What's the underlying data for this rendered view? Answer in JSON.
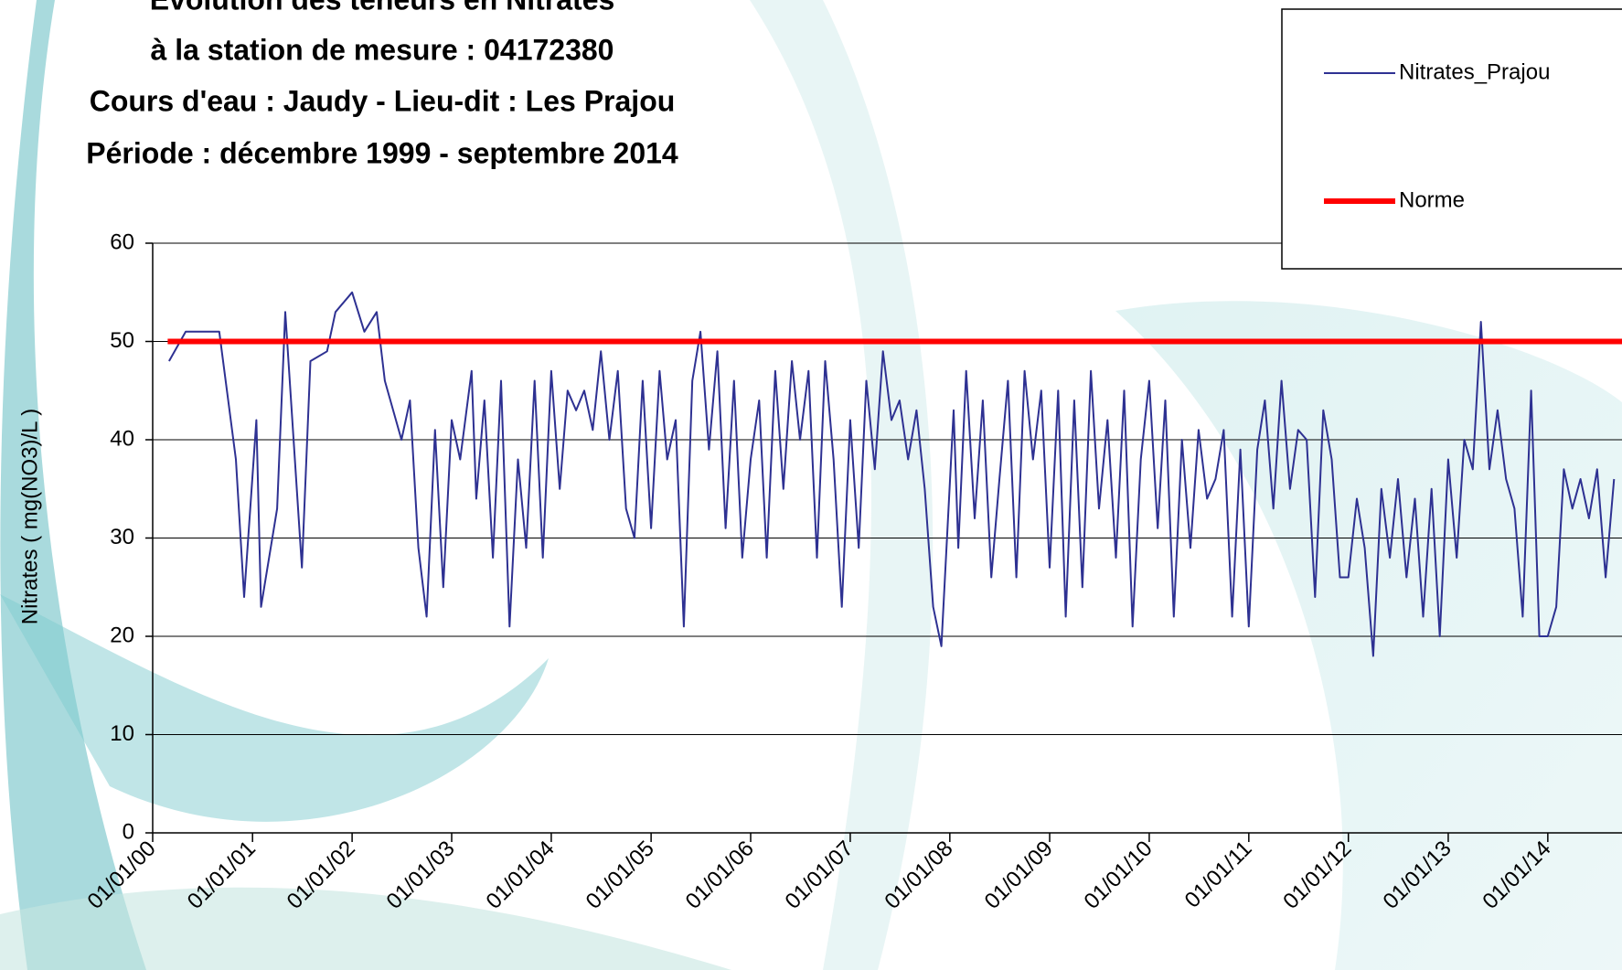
{
  "chart_data": {
    "type": "line",
    "title": [
      "Evolution des teneurs en Nitrates",
      "à la station de mesure : 04172380",
      "Cours d'eau : Jaudy  -  Lieu-dit : Les Prajou",
      "Période : décembre 1999 - septembre 2014"
    ],
    "y_label": "Nitrates ( mg(NO3)/L )",
    "ylim": [
      0,
      60
    ],
    "yticks": [
      0,
      10,
      20,
      30,
      40,
      50,
      60
    ],
    "grid": true,
    "xlim": [
      "2000-01-01",
      "2014-09-30"
    ],
    "xticks": [
      {
        "value": "2000-01-01",
        "label": "01/01/00"
      },
      {
        "value": "2001-01-01",
        "label": "01/01/01"
      },
      {
        "value": "2002-01-01",
        "label": "01/01/02"
      },
      {
        "value": "2003-01-01",
        "label": "01/01/03"
      },
      {
        "value": "2004-01-01",
        "label": "01/01/04"
      },
      {
        "value": "2005-01-01",
        "label": "01/01/05"
      },
      {
        "value": "2006-01-01",
        "label": "01/01/06"
      },
      {
        "value": "2007-01-01",
        "label": "01/01/07"
      },
      {
        "value": "2008-01-01",
        "label": "01/01/08"
      },
      {
        "value": "2009-01-01",
        "label": "01/01/09"
      },
      {
        "value": "2010-01-01",
        "label": "01/01/10"
      },
      {
        "value": "2011-01-01",
        "label": "01/01/11"
      },
      {
        "value": "2012-01-01",
        "label": "01/01/12"
      },
      {
        "value": "2013-01-01",
        "label": "01/01/13"
      },
      {
        "value": "2014-01-01",
        "label": "01/01/14"
      }
    ],
    "legend": "top-right",
    "series": [
      {
        "name": "Nitrates_Prajou",
        "color": "#2e3192",
        "width": 2,
        "x": [
          "2000-03-01",
          "2000-05-01",
          "2000-07-01",
          "2000-09-01",
          "2000-11-01",
          "2000-12-01",
          "2001-01-15",
          "2001-02-01",
          "2001-04-01",
          "2001-05-01",
          "2001-07-01",
          "2001-08-01",
          "2001-10-01",
          "2001-11-01",
          "2002-01-01",
          "2002-02-15",
          "2002-04-01",
          "2002-05-01",
          "2002-07-01",
          "2002-08-01",
          "2002-09-01",
          "2002-10-01",
          "2002-11-01",
          "2002-12-01",
          "2003-01-01",
          "2003-02-01",
          "2003-03-15",
          "2003-04-01",
          "2003-05-01",
          "2003-06-01",
          "2003-07-01",
          "2003-08-01",
          "2003-09-01",
          "2003-10-01",
          "2003-11-01",
          "2003-12-01",
          "2004-01-01",
          "2004-02-01",
          "2004-03-01",
          "2004-04-01",
          "2004-05-01",
          "2004-06-01",
          "2004-07-01",
          "2004-08-01",
          "2004-09-01",
          "2004-10-01",
          "2004-11-01",
          "2004-12-01",
          "2005-01-01",
          "2005-02-01",
          "2005-03-01",
          "2005-04-01",
          "2005-05-01",
          "2005-06-01",
          "2005-07-01",
          "2005-08-01",
          "2005-09-01",
          "2005-10-01",
          "2005-11-01",
          "2005-12-01",
          "2006-01-01",
          "2006-02-01",
          "2006-03-01",
          "2006-04-01",
          "2006-05-01",
          "2006-06-01",
          "2006-07-01",
          "2006-08-01",
          "2006-09-01",
          "2006-10-01",
          "2006-11-01",
          "2006-12-01",
          "2007-01-01",
          "2007-02-01",
          "2007-03-01",
          "2007-04-01",
          "2007-05-01",
          "2007-06-01",
          "2007-07-01",
          "2007-08-01",
          "2007-09-01",
          "2007-10-01",
          "2007-11-01",
          "2007-12-01",
          "2008-01-15",
          "2008-02-01",
          "2008-03-01",
          "2008-04-01",
          "2008-05-01",
          "2008-06-01",
          "2008-07-01",
          "2008-08-01",
          "2008-09-01",
          "2008-10-01",
          "2008-11-01",
          "2008-12-01",
          "2009-01-01",
          "2009-02-01",
          "2009-03-01",
          "2009-04-01",
          "2009-05-01",
          "2009-06-01",
          "2009-07-01",
          "2009-08-01",
          "2009-09-01",
          "2009-10-01",
          "2009-11-01",
          "2009-12-01",
          "2010-01-01",
          "2010-02-01",
          "2010-03-01",
          "2010-04-01",
          "2010-05-01",
          "2010-06-01",
          "2010-07-01",
          "2010-08-01",
          "2010-09-01",
          "2010-10-01",
          "2010-11-01",
          "2010-12-01",
          "2011-01-01",
          "2011-02-01",
          "2011-03-01",
          "2011-04-01",
          "2011-05-01",
          "2011-06-01",
          "2011-07-01",
          "2011-08-01",
          "2011-09-01",
          "2011-10-01",
          "2011-11-01",
          "2011-12-01",
          "2012-01-01",
          "2012-02-01",
          "2012-03-01",
          "2012-04-01",
          "2012-05-01",
          "2012-06-01",
          "2012-07-01",
          "2012-08-01",
          "2012-09-01",
          "2012-10-01",
          "2012-11-01",
          "2012-12-01",
          "2013-01-01",
          "2013-02-01",
          "2013-03-01",
          "2013-04-01",
          "2013-05-01",
          "2013-06-01",
          "2013-07-01",
          "2013-08-01",
          "2013-09-01",
          "2013-10-01",
          "2013-11-01",
          "2013-12-01",
          "2014-01-01",
          "2014-02-01",
          "2014-03-01",
          "2014-04-01",
          "2014-05-01",
          "2014-06-01",
          "2014-07-01",
          "2014-08-01",
          "2014-09-01"
        ],
        "values": [
          48,
          51,
          51,
          51,
          38,
          24,
          42,
          23,
          33,
          53,
          27,
          48,
          49,
          53,
          55,
          51,
          53,
          46,
          40,
          44,
          29,
          22,
          41,
          25,
          42,
          38,
          47,
          34,
          44,
          28,
          46,
          21,
          38,
          29,
          46,
          28,
          47,
          35,
          45,
          43,
          45,
          41,
          49,
          40,
          47,
          33,
          30,
          46,
          31,
          47,
          38,
          42,
          21,
          46,
          51,
          39,
          49,
          31,
          46,
          28,
          38,
          44,
          28,
          47,
          35,
          48,
          40,
          47,
          28,
          48,
          38,
          23,
          42,
          29,
          46,
          37,
          49,
          42,
          44,
          38,
          43,
          35,
          23,
          19,
          43,
          29,
          47,
          32,
          44,
          26,
          36,
          46,
          26,
          47,
          38,
          45,
          27,
          45,
          22,
          44,
          25,
          47,
          33,
          42,
          28,
          45,
          21,
          38,
          46,
          31,
          44,
          22,
          40,
          29,
          41,
          34,
          36,
          41,
          22,
          39,
          21,
          39,
          44,
          33,
          46,
          35,
          41,
          40,
          24,
          43,
          38,
          26,
          26,
          34,
          29,
          18,
          35,
          28,
          36,
          26,
          34,
          22,
          35,
          20,
          38,
          28,
          40,
          37,
          52,
          37,
          43,
          36,
          33,
          22,
          45,
          20,
          20,
          23,
          37,
          33,
          36,
          32,
          37,
          26,
          36
        ]
      },
      {
        "name": "Norme",
        "color": "#ff0000",
        "width": 6,
        "x": [
          "2000-02-25",
          "2014-09-30"
        ],
        "values": [
          50,
          50
        ]
      }
    ]
  }
}
